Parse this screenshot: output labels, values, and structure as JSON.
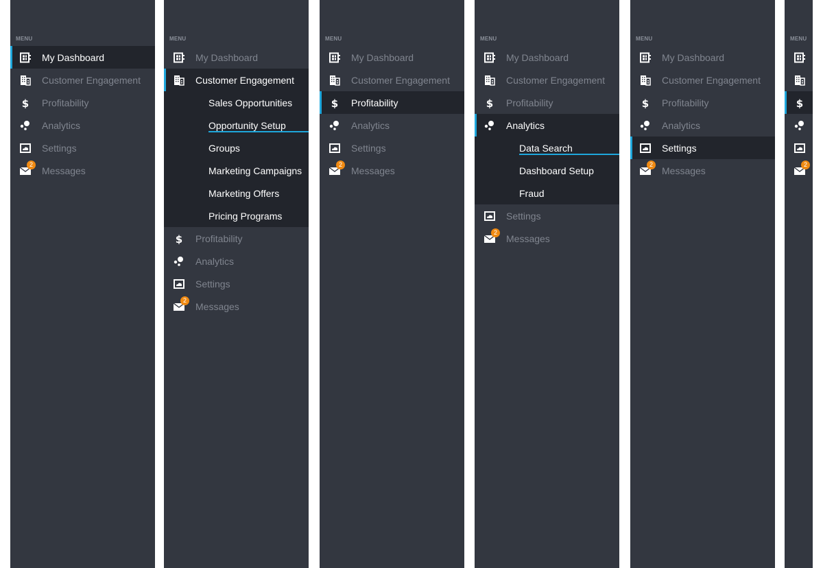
{
  "menu_label": "MENU",
  "accent_color": "#1ea7dc",
  "badge_color": "#f08a12",
  "items": [
    {
      "label": "My Dashboard",
      "icon": "dashboard-icon",
      "children": []
    },
    {
      "label": "Customer Engagement",
      "icon": "building-icon",
      "children": [
        "Sales Opportunities",
        "Opportunity Setup",
        "Groups",
        "Marketing Campaigns",
        "Marketing Offers",
        "Pricing Programs"
      ]
    },
    {
      "label": "Profitability",
      "icon": "dollar-icon",
      "children": []
    },
    {
      "label": "Analytics",
      "icon": "bubbles-icon",
      "children": [
        "Data Search",
        "Dashboard Setup",
        "Fraud"
      ]
    },
    {
      "label": "Settings",
      "icon": "cloud-screen-icon",
      "children": []
    },
    {
      "label": "Messages",
      "icon": "envelope-icon",
      "badge": "2",
      "children": []
    }
  ],
  "panels": [
    {
      "active": 0,
      "expanded": false,
      "selected_child": null,
      "collapsed": false
    },
    {
      "active": 1,
      "expanded": true,
      "selected_child": 1,
      "collapsed": false
    },
    {
      "active": 2,
      "expanded": false,
      "selected_child": null,
      "collapsed": false
    },
    {
      "active": 3,
      "expanded": true,
      "selected_child": 0,
      "collapsed": false
    },
    {
      "active": 4,
      "expanded": false,
      "selected_child": null,
      "collapsed": false
    },
    {
      "active": 2,
      "expanded": false,
      "selected_child": null,
      "collapsed": true
    }
  ]
}
